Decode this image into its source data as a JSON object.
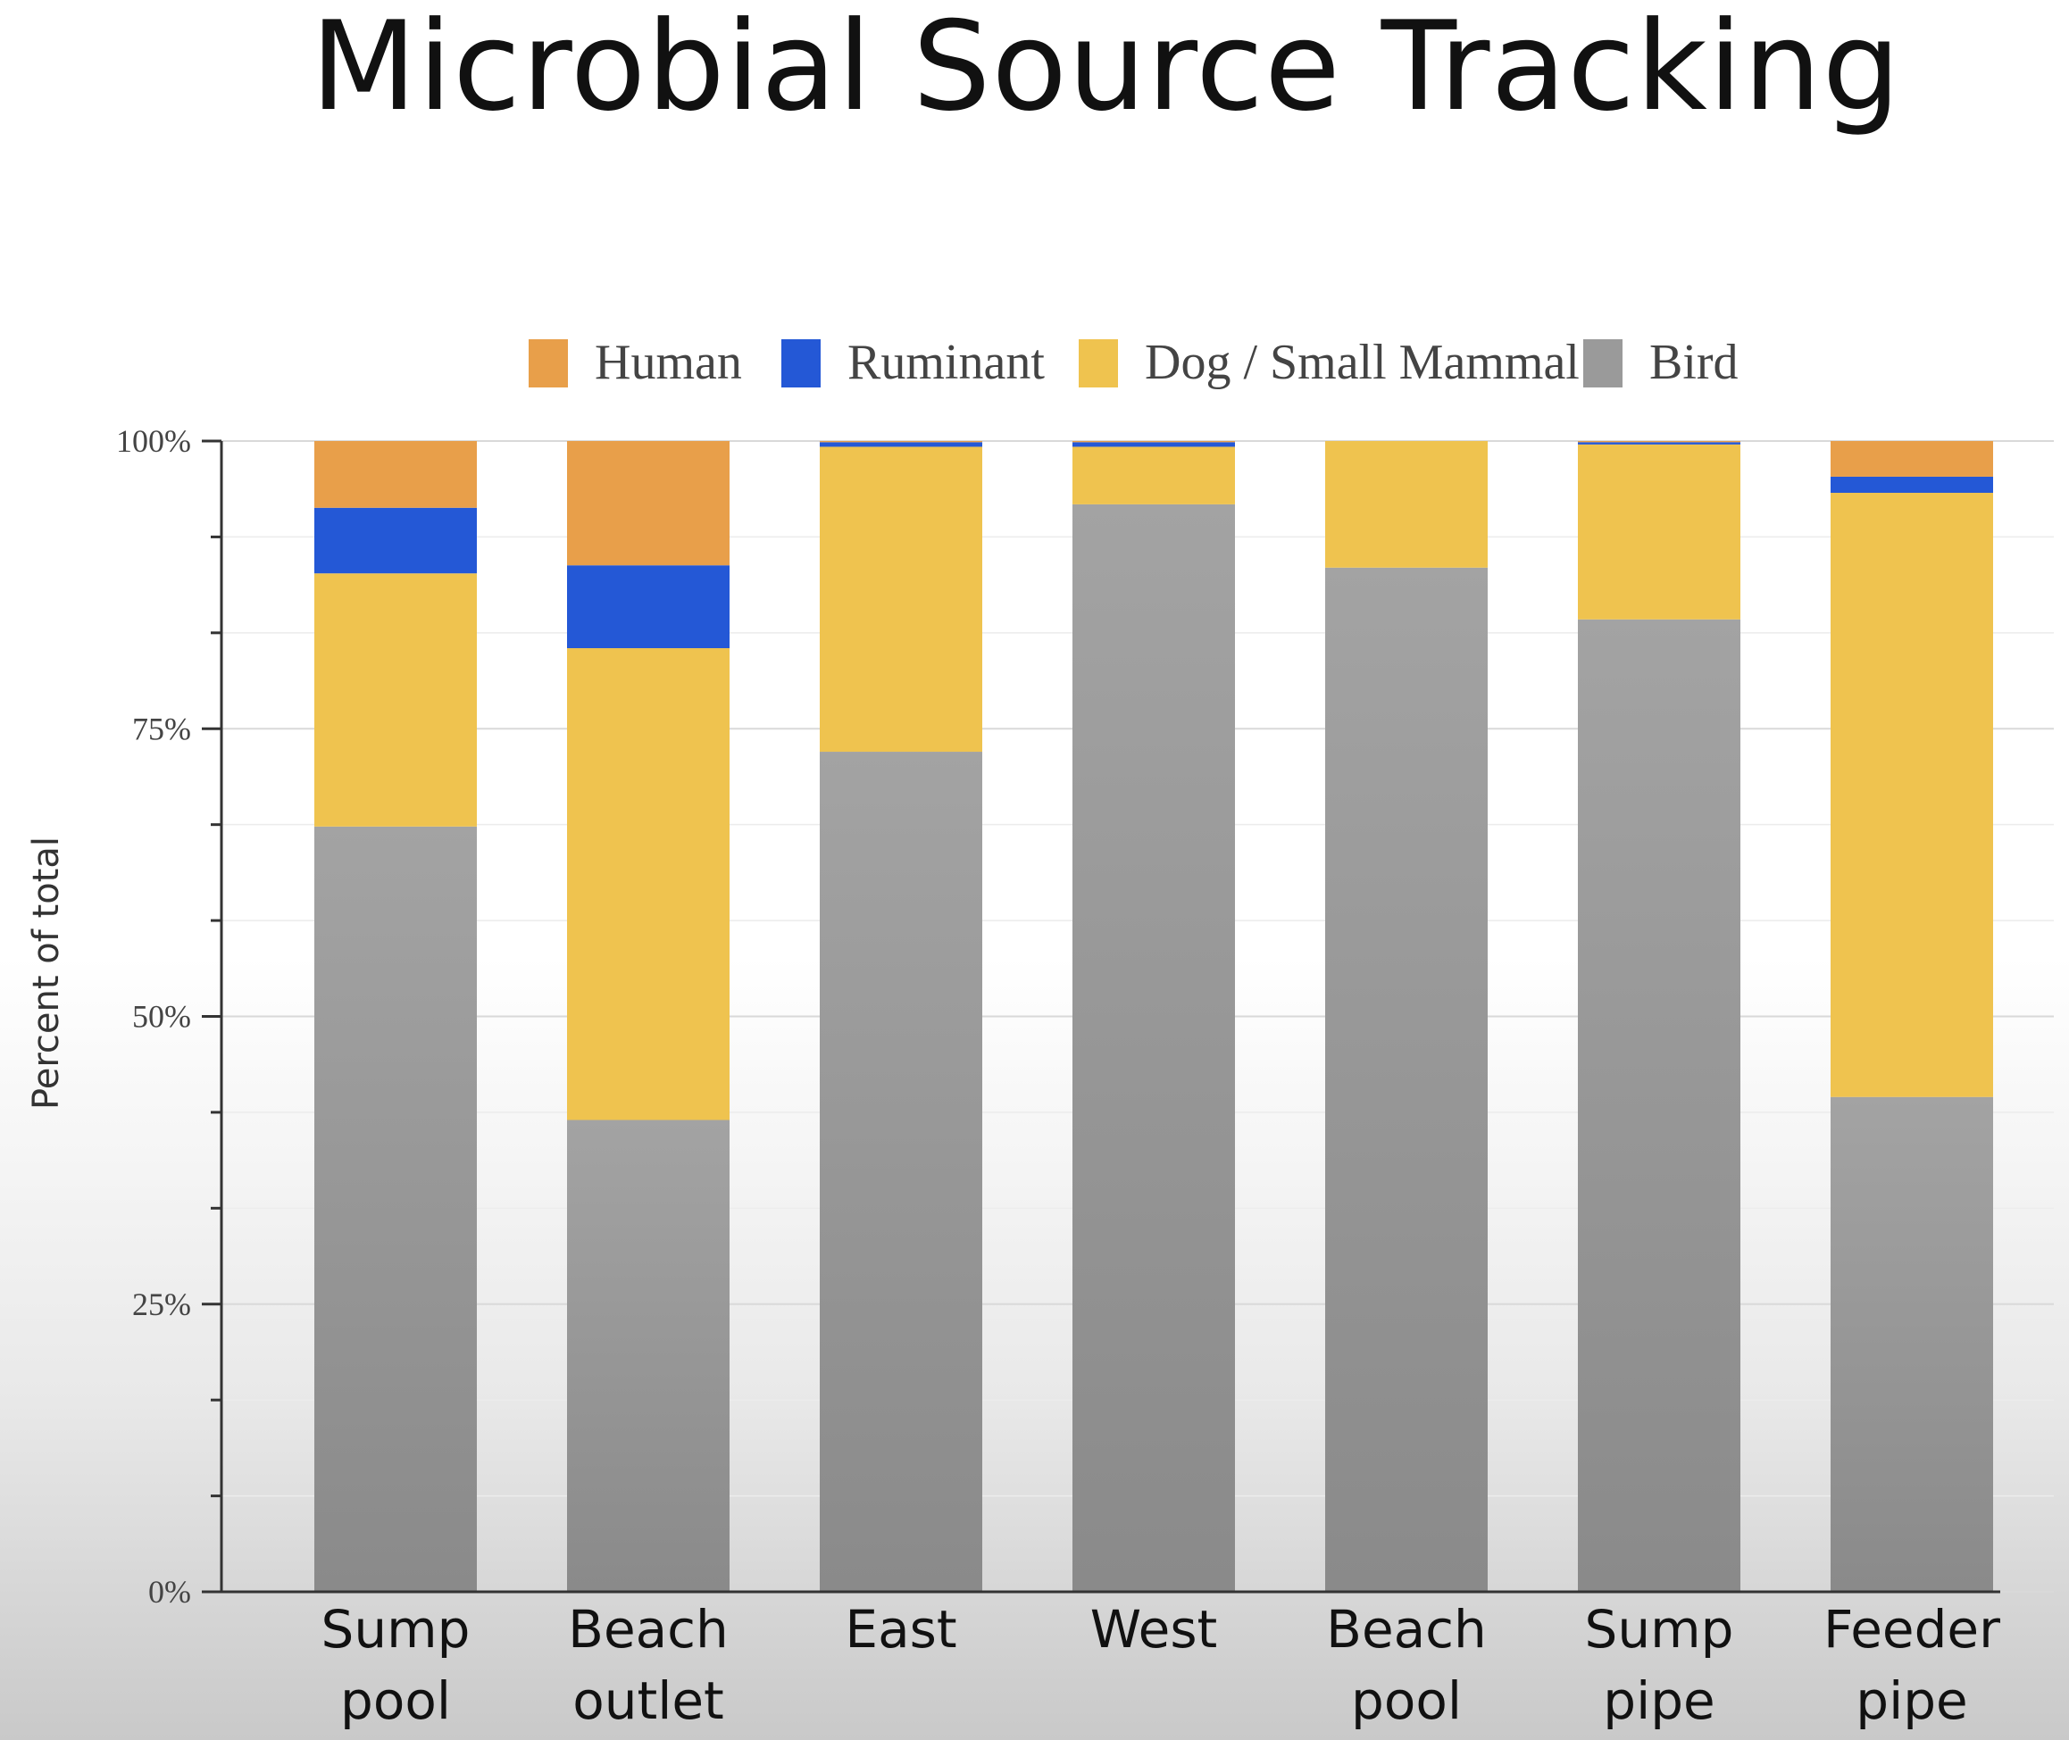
{
  "chart_data": {
    "type": "bar",
    "stacked": true,
    "title": "Microbial Source Tracking",
    "ylabel": "Percent of total",
    "xlabel": "",
    "ylim": [
      0,
      100
    ],
    "yticks": [
      "0%",
      "25%",
      "50%",
      "75%",
      "100%"
    ],
    "categories": [
      [
        "Sump",
        "pool"
      ],
      [
        "Beach",
        "outlet"
      ],
      [
        "East"
      ],
      [
        "West"
      ],
      [
        "Beach",
        "pool"
      ],
      [
        "Sump",
        "pipe"
      ],
      [
        "Feeder",
        "pipe"
      ]
    ],
    "series": [
      {
        "name": "Bird",
        "color": "#9a9a9a",
        "values": [
          66.5,
          41,
          73,
          94.5,
          89,
          84.5,
          43
        ]
      },
      {
        "name": "Dog / Small Mammal",
        "color": "#efc34f",
        "values": [
          22,
          41,
          26.5,
          5,
          11,
          15.2,
          52.5
        ]
      },
      {
        "name": "Ruminant",
        "color": "#2458d6",
        "values": [
          5.7,
          7.2,
          0.4,
          0.4,
          0,
          0.2,
          1.4
        ]
      },
      {
        "name": "Human",
        "color": "#e89f4a",
        "values": [
          5.8,
          10.8,
          0.1,
          0.1,
          0,
          0.1,
          3.1
        ]
      }
    ],
    "legend_order": [
      "Human",
      "Ruminant",
      "Dog / Small Mammal",
      "Bird"
    ],
    "legend_position": "top",
    "grid": true
  }
}
